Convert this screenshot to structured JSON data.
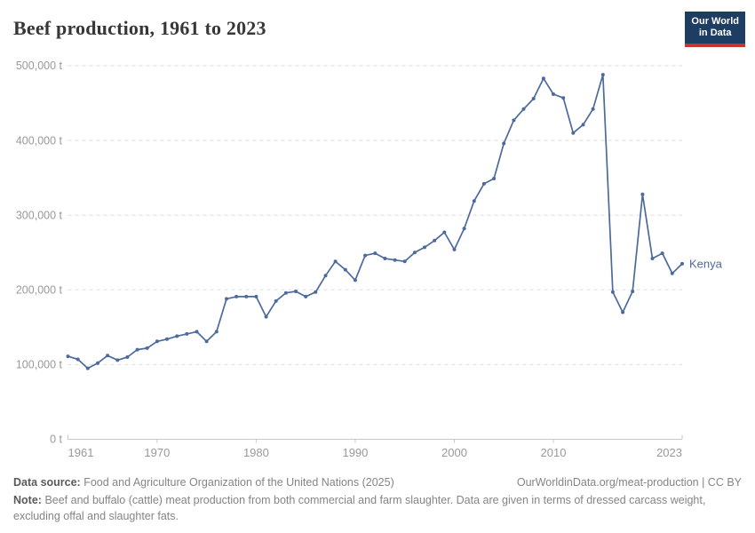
{
  "header": {
    "title": "Beef production, 1961 to 2023",
    "logo": {
      "line1": "Our World",
      "line2": "in Data"
    }
  },
  "colors": {
    "line": "#4c6a9c",
    "series_label": "#4c6a9c",
    "logo_bg": "#1d3d63",
    "logo_stripe": "#c5372c",
    "grid": "#dddddd",
    "axis": "#c8c8c8",
    "tick_label": "#999999"
  },
  "chart_data": {
    "type": "line",
    "title": "Beef production, 1961 to 2023",
    "xlabel": "",
    "ylabel": "",
    "unit": "t",
    "xlim": [
      1961,
      2023
    ],
    "ylim": [
      0,
      500000
    ],
    "grid": "horizontal-dashed",
    "legend_position": "end-of-line",
    "x_ticks": [
      {
        "value": 1961,
        "label": "1961"
      },
      {
        "value": 1970,
        "label": "1970"
      },
      {
        "value": 1980,
        "label": "1980"
      },
      {
        "value": 1990,
        "label": "1990"
      },
      {
        "value": 2000,
        "label": "2000"
      },
      {
        "value": 2010,
        "label": "2010"
      },
      {
        "value": 2023,
        "label": "2023"
      }
    ],
    "y_ticks": [
      {
        "value": 0,
        "label": "0 t"
      },
      {
        "value": 100000,
        "label": "100,000 t"
      },
      {
        "value": 200000,
        "label": "200,000 t"
      },
      {
        "value": 300000,
        "label": "300,000 t"
      },
      {
        "value": 400000,
        "label": "400,000 t"
      },
      {
        "value": 500000,
        "label": "500,000 t"
      }
    ],
    "series": [
      {
        "name": "Kenya",
        "color": "#4c6a9c",
        "x": [
          1961,
          1962,
          1963,
          1964,
          1965,
          1966,
          1967,
          1968,
          1969,
          1970,
          1971,
          1972,
          1973,
          1974,
          1975,
          1976,
          1977,
          1978,
          1979,
          1980,
          1981,
          1982,
          1983,
          1984,
          1985,
          1986,
          1987,
          1988,
          1989,
          1990,
          1991,
          1992,
          1993,
          1994,
          1995,
          1996,
          1997,
          1998,
          1999,
          2000,
          2001,
          2002,
          2003,
          2004,
          2005,
          2006,
          2007,
          2008,
          2009,
          2010,
          2011,
          2012,
          2013,
          2014,
          2015,
          2016,
          2017,
          2018,
          2019,
          2020,
          2021,
          2022,
          2023
        ],
        "values": [
          111000,
          107000,
          95000,
          102000,
          112000,
          106000,
          110000,
          120000,
          122000,
          131000,
          134000,
          138000,
          141000,
          144000,
          131000,
          144000,
          188000,
          191000,
          191000,
          191000,
          164000,
          185000,
          196000,
          198000,
          191000,
          197000,
          219000,
          238000,
          227000,
          213000,
          246000,
          249000,
          242000,
          240000,
          238000,
          250000,
          257000,
          266000,
          277000,
          254000,
          282000,
          319000,
          342000,
          349000,
          396000,
          427000,
          442000,
          456000,
          483000,
          462000,
          457000,
          410000,
          421000,
          442000,
          488000,
          197000,
          170000,
          198000,
          328000,
          242000,
          249000,
          222000,
          235000
        ]
      }
    ]
  },
  "footer": {
    "data_source_label": "Data source:",
    "data_source": "Food and Agriculture Organization of the United Nations (2025)",
    "link": "OurWorldinData.org/meat-production | CC BY",
    "note_label": "Note:",
    "note": "Beef and buffalo (cattle) meat production from both commercial and farm slaughter. Data are given in terms of dressed carcass weight, excluding offal and slaughter fats."
  }
}
